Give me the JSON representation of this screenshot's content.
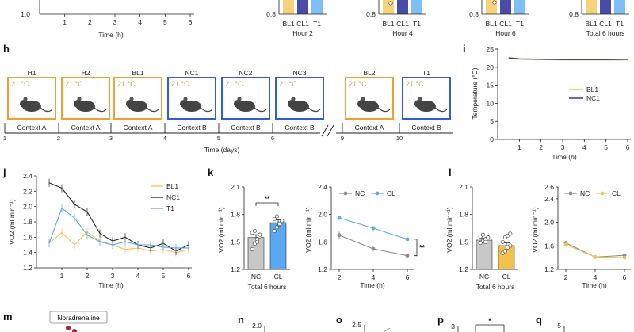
{
  "colors": {
    "orange": "#f0a030",
    "blue": "#2f5fd0",
    "bl1_line": "#f2c14e",
    "nc1_line": "#222222",
    "t1_line": "#5aa8f0",
    "nc_gray": "#8c8c8c",
    "cl_blue": "#5aa8f0",
    "cl_orange": "#f2c14e",
    "bar_bl1": "#f6d27a",
    "bar_cl1": "#4a4aa8",
    "bar_t1": "#7ec0f5"
  },
  "top": {
    "g_axis": {
      "ytick": "1.0",
      "xticks": [
        "1",
        "2",
        "3",
        "4",
        "5",
        "6"
      ],
      "xlabel": "Time (h)"
    },
    "bar_panels": [
      {
        "ytick": "0.8",
        "cats": [
          "BL1",
          "CL1",
          "T1"
        ],
        "title": "Hour 2"
      },
      {
        "ytick": "0.8",
        "cats": [
          "BL1",
          "CL1",
          "T1"
        ],
        "title": "Hour 4"
      },
      {
        "ytick": "0.8",
        "cats": [
          "BL1",
          "CL1",
          "T1"
        ],
        "title": "Hour 6"
      },
      {
        "ytick": "0.8",
        "cats": [
          "BL1",
          "CL1",
          "T1"
        ],
        "title": "Total 6 hours"
      }
    ]
  },
  "h": {
    "label": "h",
    "boxes": [
      {
        "name": "H1",
        "temp": "21 °C",
        "context": "Context A",
        "kind": "A"
      },
      {
        "name": "H2",
        "temp": "21 °C",
        "context": "Context A",
        "kind": "A"
      },
      {
        "name": "BL1",
        "temp": "21 °C",
        "context": "Context A",
        "kind": "A"
      },
      {
        "name": "NC1",
        "temp": "21 °C",
        "context": "Context B",
        "kind": "B"
      },
      {
        "name": "NC2",
        "temp": "21 °C",
        "context": "Context B",
        "kind": "B"
      },
      {
        "name": "NC3",
        "temp": "21 °C",
        "context": "Context B",
        "kind": "B"
      },
      {
        "name": "BL2",
        "temp": "21 °C",
        "context": "Context A",
        "kind": "A"
      },
      {
        "name": "T1",
        "temp": "21 °C",
        "context": "Context B",
        "kind": "B"
      }
    ],
    "days": [
      "1",
      "2",
      "3",
      "4",
      "5",
      "6",
      "9",
      "10"
    ],
    "xlabel": "Time (days)"
  },
  "i": {
    "label": "i",
    "chart_data": {
      "type": "line",
      "ylabel": "Temperature (°C)",
      "xlabel": "Time (h)",
      "ylim": [
        0,
        25
      ],
      "yticks": [
        "0",
        "5",
        "10",
        "15",
        "20",
        "25"
      ],
      "xticks": [
        "1",
        "2",
        "3",
        "4",
        "5",
        "6"
      ],
      "series": [
        {
          "name": "BL1",
          "x": [
            0.5,
            1,
            2,
            3,
            4,
            5,
            6
          ],
          "values": [
            22.4,
            22.2,
            22.1,
            22.0,
            22.0,
            22.0,
            22.0
          ]
        },
        {
          "name": "NC1",
          "x": [
            0.5,
            1,
            2,
            3,
            4,
            5,
            6
          ],
          "values": [
            22.6,
            22.3,
            22.2,
            22.1,
            22.1,
            22.1,
            22.2
          ]
        }
      ]
    }
  },
  "j": {
    "label": "j",
    "chart_data": {
      "type": "line",
      "ylabel": "VO2 (ml min⁻¹)",
      "xlabel": "Time (h)",
      "ylim": [
        1.2,
        2.4
      ],
      "yticks": [
        "1.2",
        "1.4",
        "1.6",
        "1.8",
        "2.0",
        "2.2",
        "2.4"
      ],
      "xticks": [
        "1",
        "2",
        "3",
        "4",
        "5",
        "6"
      ],
      "x": [
        0.5,
        1,
        1.5,
        2,
        2.5,
        3,
        3.5,
        4,
        4.5,
        5,
        5.5,
        6
      ],
      "series": [
        {
          "name": "BL1",
          "values": [
            1.52,
            1.66,
            1.5,
            1.67,
            1.55,
            1.5,
            1.44,
            1.46,
            1.42,
            1.44,
            1.4,
            1.44
          ]
        },
        {
          "name": "NC1",
          "values": [
            2.31,
            2.24,
            2.03,
            1.93,
            1.65,
            1.55,
            1.6,
            1.5,
            1.46,
            1.52,
            1.42,
            1.5
          ]
        },
        {
          "name": "T1",
          "values": [
            1.52,
            1.98,
            1.85,
            1.63,
            1.54,
            1.5,
            1.54,
            1.5,
            1.5,
            1.47,
            1.46,
            1.46
          ]
        }
      ]
    }
  },
  "k": {
    "label": "k",
    "bar": {
      "chart_data": {
        "type": "bar",
        "ylabel": "VO2 (ml min⁻¹)",
        "categories": [
          "NC",
          "CL"
        ],
        "values": [
          1.55,
          1.71
        ],
        "errors": [
          0.03,
          0.03
        ],
        "points": [
          [
            1.42,
            1.48,
            1.53,
            1.56,
            1.6,
            1.62,
            1.5,
            1.58
          ],
          [
            1.62,
            1.66,
            1.69,
            1.72,
            1.75,
            1.78,
            1.7,
            1.73
          ]
        ],
        "ylim": [
          1.2,
          2.1
        ],
        "yticks": [
          "1.2",
          "1.5",
          "1.8",
          "2.1"
        ],
        "xlabel": "Total 6 hours",
        "sig": "**"
      }
    },
    "line": {
      "chart_data": {
        "type": "line",
        "ylabel": "VO2 (ml min⁻¹)",
        "xlabel": "Time (h)",
        "ylim": [
          1.2,
          2.4
        ],
        "yticks": [
          "1.2",
          "1.6",
          "2.0",
          "2.4"
        ],
        "xticks": [
          "2",
          "4",
          "6"
        ],
        "x": [
          2,
          4,
          6
        ],
        "series": [
          {
            "name": "NC",
            "values": [
              1.7,
              1.5,
              1.4
            ],
            "errors": [
              0.05,
              0.03,
              0.03
            ]
          },
          {
            "name": "CL",
            "values": [
              1.95,
              1.8,
              1.64
            ],
            "errors": [
              0.03,
              0.03,
              0.02
            ]
          }
        ],
        "sig": "**"
      }
    }
  },
  "l": {
    "label": "l",
    "bar": {
      "chart_data": {
        "type": "bar",
        "ylabel": "VO2 (ml min⁻¹)",
        "categories": [
          "NC",
          "CL"
        ],
        "values": [
          1.52,
          1.46
        ],
        "errors": [
          0.02,
          0.03
        ],
        "points": [
          [
            1.49,
            1.51,
            1.53,
            1.55,
            1.56,
            1.58,
            1.5
          ],
          [
            1.38,
            1.4,
            1.44,
            1.46,
            1.5,
            1.55,
            1.57,
            1.59
          ]
        ],
        "ylim": [
          1.2,
          2.1
        ],
        "yticks": [
          "1.2",
          "1.5",
          "1.8",
          "2.1"
        ],
        "xlabel": "Total 6 hours"
      }
    },
    "line": {
      "chart_data": {
        "type": "line",
        "ylabel": "VO2 (ml min⁻¹)",
        "xlabel": "Time (h)",
        "ylim": [
          1.2,
          2.6
        ],
        "yticks": [
          "1.2",
          "1.6",
          "2.0",
          "2.4",
          "2.6"
        ],
        "xticks": [
          "2",
          "4",
          "6"
        ],
        "x": [
          2,
          4,
          6
        ],
        "series": [
          {
            "name": "NC",
            "values": [
              1.65,
              1.41,
              1.44
            ],
            "errors": [
              0.03,
              0.02,
              0.02
            ]
          },
          {
            "name": "CL",
            "values": [
              1.62,
              1.41,
              1.4
            ],
            "errors": [
              0.03,
              0.02,
              0.02
            ]
          }
        ]
      }
    }
  },
  "bottom": {
    "m": {
      "label": "m",
      "box_text": "Noradrenaline"
    },
    "n": {
      "label": "n",
      "ytick": "2.0"
    },
    "o": {
      "label": "o",
      "ytick": "2.5"
    },
    "p": {
      "label": "p",
      "ytick": "3",
      "sig": "*"
    },
    "q": {
      "label": "q",
      "ytick": "5"
    }
  }
}
